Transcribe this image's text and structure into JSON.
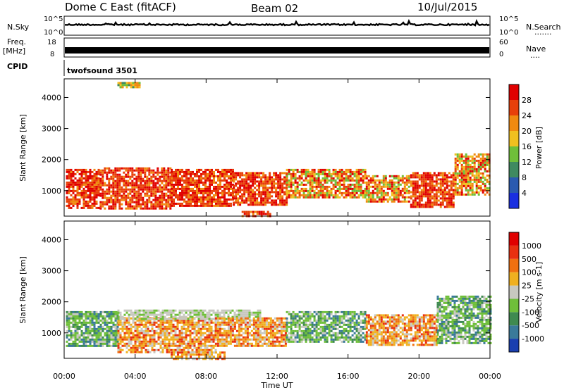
{
  "header": {
    "site": "Dome C East (fitACF)",
    "beam": "Beam 02",
    "date": "10/Jul/2015"
  },
  "strip_panels": {
    "nsky": {
      "label": "N.Sky",
      "ticks": [
        "10^5",
        "10^0"
      ],
      "right_ticks": [
        "10^5",
        "10^0"
      ],
      "right_label": "N.Search"
    },
    "freq": {
      "label_top": "Freq.",
      "label_unit": "[MHz]",
      "ticks": [
        "18",
        "8"
      ],
      "right_ticks": [
        "60",
        "0"
      ],
      "right_label": "Nave"
    },
    "cpid": {
      "label": "CPID",
      "value": "twofsound 3501"
    }
  },
  "x_axis": {
    "label": "Time UT",
    "ticks": [
      "00:00",
      "04:00",
      "08:00",
      "12:00",
      "16:00",
      "20:00",
      "00:00"
    ],
    "range_hours": [
      0,
      24
    ]
  },
  "chart_data": [
    {
      "type": "heatmap",
      "panel": "power",
      "ylabel": "Slant Range [km]",
      "yticks": [
        1000,
        2000,
        3000,
        4000
      ],
      "ylim": [
        180,
        4600
      ],
      "xlim": [
        0,
        24
      ],
      "colorbar": {
        "label": "Power [dB]",
        "ticks": [
          "4",
          "8",
          "12",
          "16",
          "20",
          "24",
          "28"
        ],
        "colors": [
          "#1a2fe0",
          "#2a5ab0",
          "#3f8a60",
          "#6fbf3a",
          "#f0c020",
          "#f08a10",
          "#e8400a",
          "#e00000"
        ]
      },
      "regions": [
        {
          "t": [
            0.1,
            2.0
          ],
          "r": [
            450,
            1700
          ],
          "level": "high"
        },
        {
          "t": [
            2.0,
            6.0
          ],
          "r": [
            400,
            1750
          ],
          "level": "high"
        },
        {
          "t": [
            6.0,
            9.5
          ],
          "r": [
            500,
            1700
          ],
          "level": "high"
        },
        {
          "t": [
            9.5,
            12.5
          ],
          "r": [
            550,
            1600
          ],
          "level": "high"
        },
        {
          "t": [
            12.5,
            17.0
          ],
          "r": [
            750,
            1700
          ],
          "level": "mid"
        },
        {
          "t": [
            17.0,
            19.5
          ],
          "r": [
            650,
            1500
          ],
          "level": "mid"
        },
        {
          "t": [
            19.5,
            22.0
          ],
          "r": [
            500,
            1600
          ],
          "level": "high"
        },
        {
          "t": [
            22.0,
            24.0
          ],
          "r": [
            900,
            2200
          ],
          "level": "mid"
        },
        {
          "t": [
            10.0,
            11.6
          ],
          "r": [
            180,
            350
          ],
          "level": "high"
        },
        {
          "t": [
            3.0,
            4.2
          ],
          "r": [
            4350,
            4500
          ],
          "level": "low"
        }
      ]
    },
    {
      "type": "heatmap",
      "panel": "velocity",
      "ylabel": "Slant Range [km]",
      "yticks": [
        1000,
        2000,
        3000,
        4000
      ],
      "ylim": [
        180,
        4600
      ],
      "xlim": [
        0,
        24
      ],
      "colorbar": {
        "label": "Velocity [m s-1]",
        "ticks": [
          "1000",
          "500",
          "100",
          "25",
          "-25",
          "-100",
          "-500",
          "-1000"
        ],
        "colors": [
          "#1a3fb0",
          "#3a7a9a",
          "#3f8a50",
          "#6fbf3a",
          "#c8c8c0",
          "#f0b020",
          "#f07010",
          "#e83010",
          "#e00000"
        ]
      },
      "regions": [
        {
          "t": [
            0.1,
            3.0
          ],
          "r": [
            550,
            1700
          ],
          "level": "green"
        },
        {
          "t": [
            3.0,
            8.5
          ],
          "r": [
            400,
            1500
          ],
          "level": "orange"
        },
        {
          "t": [
            3.0,
            11.0
          ],
          "r": [
            1450,
            1750
          ],
          "level": "gray"
        },
        {
          "t": [
            8.5,
            12.5
          ],
          "r": [
            550,
            1500
          ],
          "level": "orange"
        },
        {
          "t": [
            12.5,
            17.0
          ],
          "r": [
            700,
            1700
          ],
          "level": "green"
        },
        {
          "t": [
            17.0,
            21.0
          ],
          "r": [
            600,
            1600
          ],
          "level": "orange"
        },
        {
          "t": [
            21.0,
            24.0
          ],
          "r": [
            700,
            2200
          ],
          "level": "green"
        },
        {
          "t": [
            6.0,
            9.0
          ],
          "r": [
            180,
            400
          ],
          "level": "orange"
        }
      ]
    }
  ]
}
